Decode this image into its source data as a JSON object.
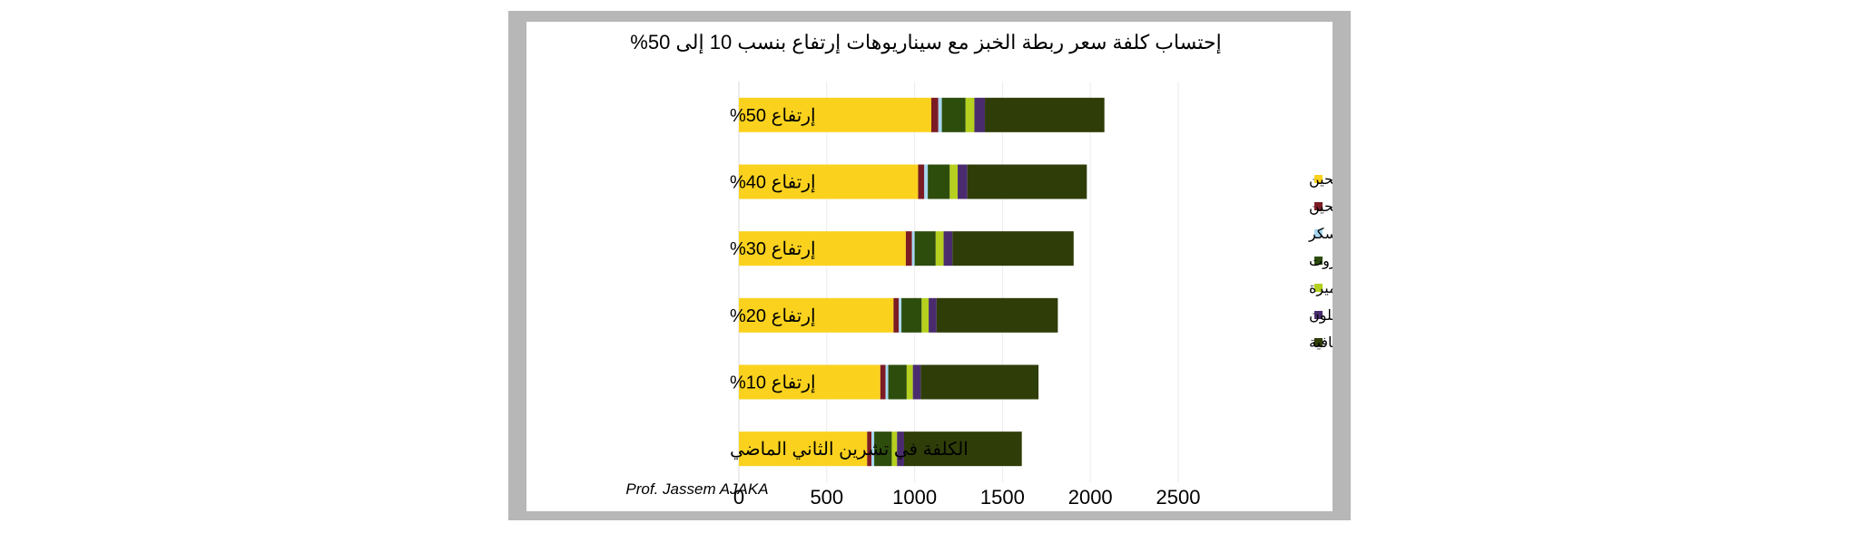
{
  "chart_data": {
    "type": "bar",
    "orientation": "horizontal",
    "stacked": true,
    "title": "إحتساب كلفة سعر ربطة الخبز مع سيناريوهات إرتفاع بنسب 10 إلى 50%",
    "xlabel": "",
    "ylabel": "",
    "xlim": [
      0,
      2500
    ],
    "xticks": [
      0,
      500,
      1000,
      1500,
      2000,
      2500
    ],
    "grid": true,
    "legend_position": "right",
    "categories": [
      "إرتفاع 50%",
      "إرتفاع 40%",
      "إرتفاع 30%",
      "إرتفاع 20%",
      "إرتفاع 10%",
      "الكلفة في تشرين الثاني الماضي"
    ],
    "series": [
      {
        "name": "طحين",
        "color": "#fad21e",
        "values": [
          1095,
          1020,
          950,
          880,
          805,
          730
        ]
      },
      {
        "name": "كلفة نقل طن الطحين",
        "color": "#7b1c24",
        "values": [
          40,
          35,
          35,
          30,
          30,
          25
        ]
      },
      {
        "name": "سكر",
        "color": "#a6d8f2",
        "values": [
          20,
          20,
          15,
          15,
          15,
          15
        ]
      },
      {
        "name": "مازوت",
        "color": "#2d4d0d",
        "values": [
          135,
          125,
          120,
          115,
          105,
          100
        ]
      },
      {
        "name": "خميرة",
        "color": "#b5d01e",
        "values": [
          50,
          45,
          45,
          40,
          35,
          30
        ]
      },
      {
        "name": "أكياس نيلون",
        "color": "#4a2c6e",
        "values": [
          60,
          55,
          50,
          45,
          45,
          40
        ]
      },
      {
        "name": "أعباء إضافية",
        "color": "#2f3d08",
        "values": [
          680,
          680,
          690,
          690,
          670,
          670
        ]
      }
    ]
  },
  "credit": "Prof. Jassem AJAKA"
}
